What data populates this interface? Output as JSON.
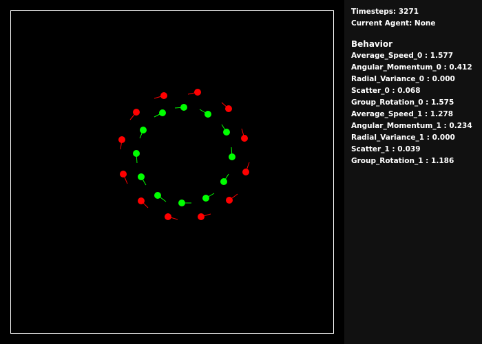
{
  "status": {
    "timesteps_label": "Timesteps:",
    "timesteps_value": "3271",
    "current_agent_label": "Current Agent:",
    "current_agent_value": "None"
  },
  "behavior": {
    "title": "Behavior",
    "metrics": [
      {
        "name": "Average_Speed_0",
        "value": "1.577"
      },
      {
        "name": "Angular_Momentum_0",
        "value": "0.412"
      },
      {
        "name": "Radial_Variance_0",
        "value": "0.000"
      },
      {
        "name": "Scatter_0",
        "value": "0.068"
      },
      {
        "name": "Group_Rotation_0",
        "value": "1.575"
      },
      {
        "name": "Average_Speed_1",
        "value": "1.278"
      },
      {
        "name": "Angular_Momentum_1",
        "value": "0.234"
      },
      {
        "name": "Radial_Variance_1",
        "value": "0.000"
      },
      {
        "name": "Scatter_1",
        "value": "0.039"
      },
      {
        "name": "Group_Rotation_1",
        "value": "1.186"
      }
    ]
  },
  "colors": {
    "background": "#000000",
    "panel": "#111111",
    "border": "#ffffff",
    "group_0": "#ff0000",
    "group_1": "#00ff00",
    "text": "#ffffff"
  }
}
